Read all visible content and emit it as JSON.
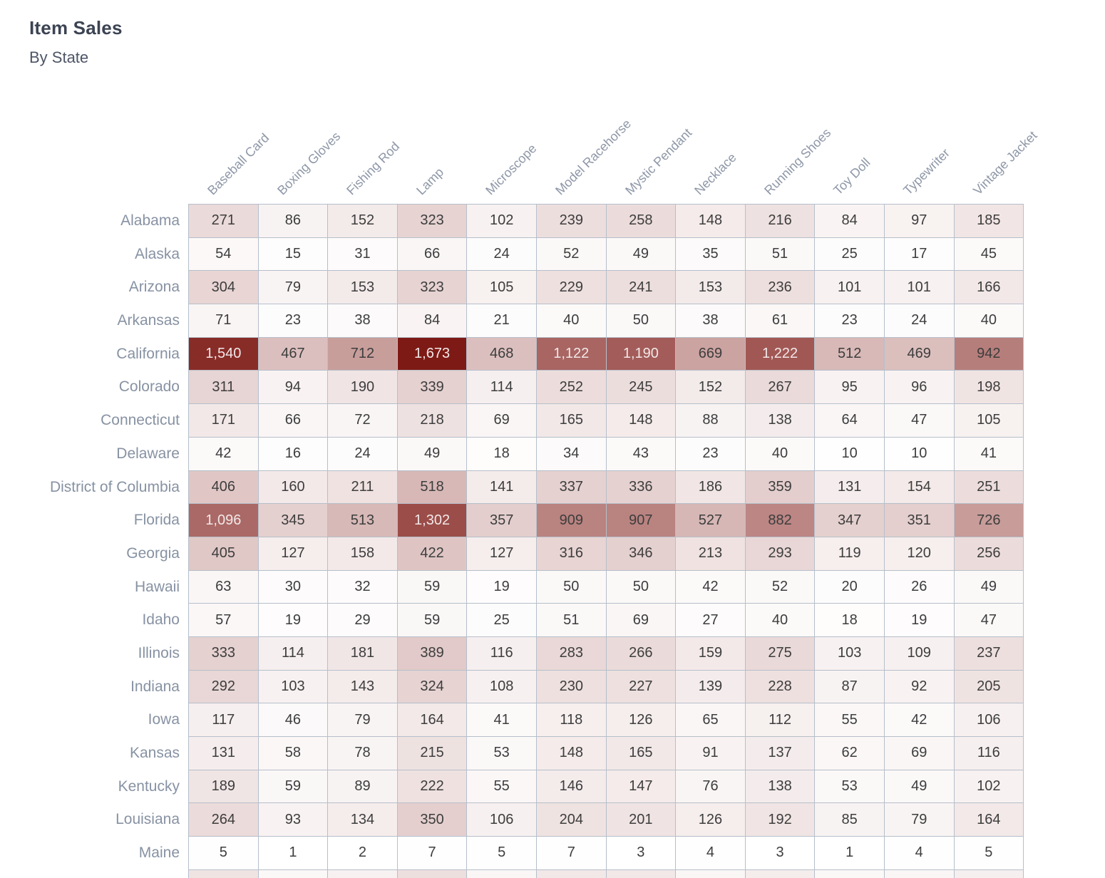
{
  "header": {
    "title": "Item Sales",
    "subtitle": "By State"
  },
  "chart_data": {
    "type": "heatmap",
    "title": "Item Sales",
    "subtitle": "By State",
    "columns": [
      "Baseball Card",
      "Boxing Gloves",
      "Fishing Rod",
      "Lamp",
      "Microscope",
      "Model Racehorse",
      "Mystic Pendant",
      "Necklace",
      "Running Shoes",
      "Toy Doll",
      "Typewriter",
      "Vintage Jacket"
    ],
    "rows": [
      {
        "state": "Alabama",
        "values": [
          271,
          86,
          152,
          323,
          102,
          239,
          258,
          148,
          216,
          84,
          97,
          185
        ]
      },
      {
        "state": "Alaska",
        "values": [
          54,
          15,
          31,
          66,
          24,
          52,
          49,
          35,
          51,
          25,
          17,
          45
        ]
      },
      {
        "state": "Arizona",
        "values": [
          304,
          79,
          153,
          323,
          105,
          229,
          241,
          153,
          236,
          101,
          101,
          166
        ]
      },
      {
        "state": "Arkansas",
        "values": [
          71,
          23,
          38,
          84,
          21,
          40,
          50,
          38,
          61,
          23,
          24,
          40
        ]
      },
      {
        "state": "California",
        "values": [
          1540,
          467,
          712,
          1673,
          468,
          1122,
          1190,
          669,
          1222,
          512,
          469,
          942
        ]
      },
      {
        "state": "Colorado",
        "values": [
          311,
          94,
          190,
          339,
          114,
          252,
          245,
          152,
          267,
          95,
          96,
          198
        ]
      },
      {
        "state": "Connecticut",
        "values": [
          171,
          66,
          72,
          218,
          69,
          165,
          148,
          88,
          138,
          64,
          47,
          105
        ]
      },
      {
        "state": "Delaware",
        "values": [
          42,
          16,
          24,
          49,
          18,
          34,
          43,
          23,
          40,
          10,
          10,
          41
        ]
      },
      {
        "state": "District of Columbia",
        "values": [
          406,
          160,
          211,
          518,
          141,
          337,
          336,
          186,
          359,
          131,
          154,
          251
        ]
      },
      {
        "state": "Florida",
        "values": [
          1096,
          345,
          513,
          1302,
          357,
          909,
          907,
          527,
          882,
          347,
          351,
          726
        ]
      },
      {
        "state": "Georgia",
        "values": [
          405,
          127,
          158,
          422,
          127,
          316,
          346,
          213,
          293,
          119,
          120,
          256
        ]
      },
      {
        "state": "Hawaii",
        "values": [
          63,
          30,
          32,
          59,
          19,
          50,
          50,
          42,
          52,
          20,
          26,
          49
        ]
      },
      {
        "state": "Idaho",
        "values": [
          57,
          19,
          29,
          59,
          25,
          51,
          69,
          27,
          40,
          18,
          19,
          47
        ]
      },
      {
        "state": "Illinois",
        "values": [
          333,
          114,
          181,
          389,
          116,
          283,
          266,
          159,
          275,
          103,
          109,
          237
        ]
      },
      {
        "state": "Indiana",
        "values": [
          292,
          103,
          143,
          324,
          108,
          230,
          227,
          139,
          228,
          87,
          92,
          205
        ]
      },
      {
        "state": "Iowa",
        "values": [
          117,
          46,
          79,
          164,
          41,
          118,
          126,
          65,
          112,
          55,
          42,
          106
        ]
      },
      {
        "state": "Kansas",
        "values": [
          131,
          58,
          78,
          215,
          53,
          148,
          165,
          91,
          137,
          62,
          69,
          116
        ]
      },
      {
        "state": "Kentucky",
        "values": [
          189,
          59,
          89,
          222,
          55,
          146,
          147,
          76,
          138,
          53,
          49,
          102
        ]
      },
      {
        "state": "Louisiana",
        "values": [
          264,
          93,
          134,
          350,
          106,
          204,
          201,
          126,
          192,
          85,
          79,
          164
        ]
      },
      {
        "state": "Maine",
        "values": [
          5,
          1,
          2,
          7,
          5,
          7,
          3,
          4,
          3,
          1,
          4,
          5
        ]
      }
    ],
    "partial_next_row_visible": true,
    "partial_row_color_fractions": [
      0.12,
      0.03,
      0.06,
      0.14,
      0.04,
      0.1,
      0.1,
      0.04,
      0.08,
      0.03,
      0.04,
      0.07
    ],
    "value_domain": [
      0,
      1673
    ],
    "color_scale": {
      "min_color": "#ffffff",
      "max_color": "#7e1a15"
    },
    "light_text_color": "#f2e8e8",
    "dark_text_color": "#3d3d3d",
    "light_text_threshold": 0.6,
    "number_format": "thousands-comma",
    "legend": "none",
    "grid": true
  }
}
